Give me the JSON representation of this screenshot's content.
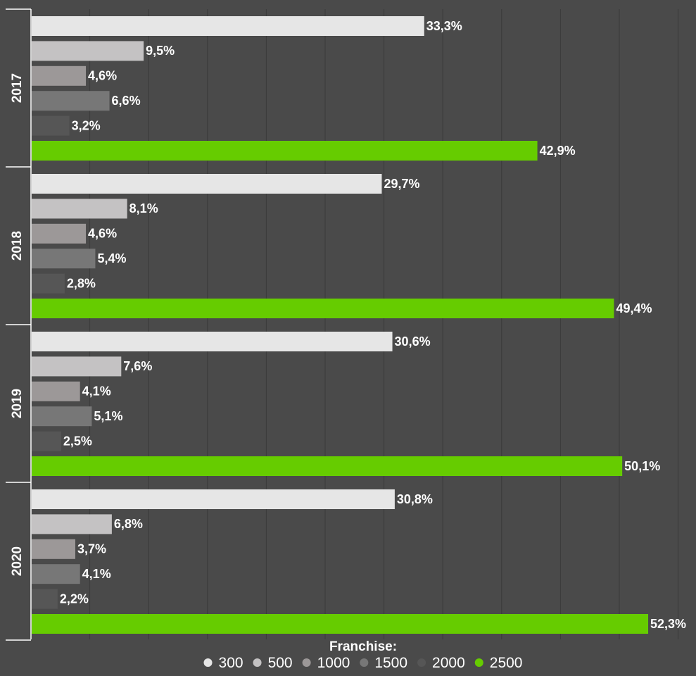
{
  "chart_data": {
    "type": "bar",
    "orientation": "horizontal",
    "categories": [
      "2017",
      "2018",
      "2019",
      "2020"
    ],
    "series": [
      {
        "name": "300",
        "color": "#e6e6e6",
        "values": [
          33.3,
          29.7,
          30.6,
          30.8
        ],
        "labels": [
          "33,3%",
          "29,7%",
          "30,6%",
          "30,8%"
        ]
      },
      {
        "name": "500",
        "color": "#c4c2c3",
        "values": [
          9.5,
          8.1,
          7.6,
          6.8
        ],
        "labels": [
          "9,5%",
          "8,1%",
          "7,6%",
          "6,8%"
        ]
      },
      {
        "name": "1000",
        "color": "#9c9898",
        "values": [
          4.6,
          4.6,
          4.1,
          3.7
        ],
        "labels": [
          "4,6%",
          "4,6%",
          "4,1%",
          "3,7%"
        ]
      },
      {
        "name": "1500",
        "color": "#777777",
        "values": [
          6.6,
          5.4,
          5.1,
          4.1
        ],
        "labels": [
          "6,6%",
          "5,4%",
          "5,1%",
          "4,1%"
        ]
      },
      {
        "name": "2000",
        "color": "#565656",
        "values": [
          3.2,
          2.8,
          2.5,
          2.2
        ],
        "labels": [
          "3,2%",
          "2,8%",
          "2,5%",
          "2,2%"
        ]
      },
      {
        "name": "2500",
        "color": "#66cc00",
        "values": [
          42.9,
          49.4,
          50.1,
          52.3
        ],
        "labels": [
          "42,9%",
          "49,4%",
          "50,1%",
          "52,3%"
        ]
      }
    ],
    "xlim": [
      0,
      55
    ],
    "grid": true,
    "legend": {
      "title": "Franchise:",
      "placement": "bottom-center"
    }
  },
  "colors": {
    "background": "#4a4a4a",
    "gridline": "#3a3a3a",
    "axis": "#ffffff",
    "text": "#ffffff"
  }
}
